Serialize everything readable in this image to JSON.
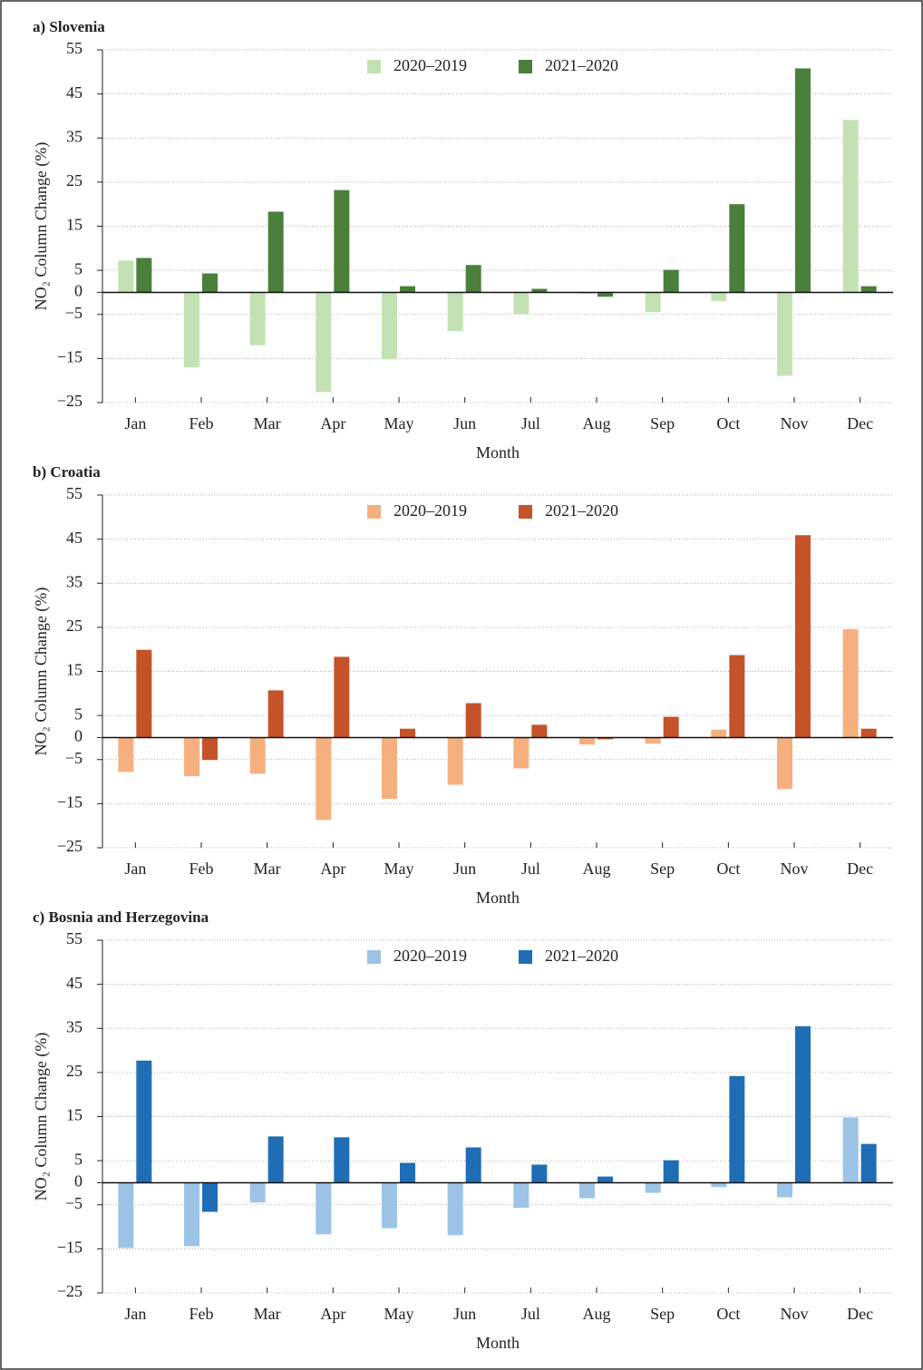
{
  "chart_data": [
    {
      "type": "bar",
      "title": "a) Slovenia",
      "xlabel": "Month",
      "ylabel": "NO₂ Column Change (%)",
      "categories": [
        "Jan",
        "Feb",
        "Mar",
        "Apr",
        "May",
        "Jun",
        "Jul",
        "Aug",
        "Sep",
        "Oct",
        "Nov",
        "Dec"
      ],
      "series": [
        {
          "name": "2020–2019",
          "color": "#c3e2b4",
          "values": [
            7.2,
            -17,
            -12,
            -22.6,
            -15.2,
            -8.8,
            -4.9,
            -0.3,
            -4.5,
            -2,
            -18.9,
            39.1
          ]
        },
        {
          "name": "2021–2020",
          "color": "#4a7f3c",
          "values": [
            7.8,
            4.3,
            18.3,
            23.2,
            1.4,
            6.2,
            0.8,
            -1,
            5.1,
            20,
            50.8,
            1.4
          ]
        }
      ],
      "ylim": [
        -25,
        55
      ],
      "yticks": [
        55,
        45,
        35,
        25,
        15,
        5,
        0,
        {
          "value": -5,
          "label": "−5"
        },
        {
          "value": -15,
          "label": "−15"
        },
        {
          "value": -25,
          "label": "−25"
        }
      ],
      "grid": true
    },
    {
      "type": "bar",
      "title": "b) Croatia",
      "xlabel": "Month",
      "ylabel": "NO₂ Column Change (%)",
      "categories": [
        "Jan",
        "Feb",
        "Mar",
        "Apr",
        "May",
        "Jun",
        "Jul",
        "Aug",
        "Sep",
        "Oct",
        "Nov",
        "Dec"
      ],
      "series": [
        {
          "name": "2020–2019",
          "color": "#f6b07f",
          "values": [
            -7.8,
            -8.8,
            -8.2,
            -18.7,
            -13.9,
            -10.7,
            -7,
            -1.6,
            -1.4,
            1.8,
            -11.7,
            24.6
          ]
        },
        {
          "name": "2021–2020",
          "color": "#c4532a",
          "values": [
            19.9,
            -5.1,
            10.7,
            18.3,
            2,
            7.8,
            2.9,
            -0.4,
            4.7,
            18.7,
            45.9,
            2
          ]
        }
      ],
      "ylim": [
        -25,
        55
      ],
      "yticks": [
        55,
        45,
        35,
        25,
        15,
        5,
        0,
        {
          "value": -5,
          "label": "−5"
        },
        {
          "value": -15,
          "label": "−15"
        },
        {
          "value": -25,
          "label": "−25"
        }
      ],
      "grid": true
    },
    {
      "type": "bar",
      "title": "c) Bosnia and Herzegovina",
      "xlabel": "Month",
      "ylabel": "NO₂ Column Change (%)",
      "categories": [
        "Jan",
        "Feb",
        "Mar",
        "Apr",
        "May",
        "Jun",
        "Jul",
        "Aug",
        "Sep",
        "Oct",
        "Nov",
        "Dec"
      ],
      "series": [
        {
          "name": "2020–2019",
          "color": "#9dc3e6",
          "values": [
            -14.8,
            -14.4,
            -4.5,
            -11.7,
            -10.3,
            -11.9,
            -5.7,
            -3.5,
            -2.3,
            -1,
            -3.3,
            14.8
          ]
        },
        {
          "name": "2021–2020",
          "color": "#1f6eb5",
          "values": [
            27.7,
            -6.6,
            10.5,
            10.3,
            4.5,
            8,
            4.1,
            1.4,
            5.1,
            24.2,
            35.5,
            8.8
          ]
        }
      ],
      "ylim": [
        -25,
        55
      ],
      "yticks": [
        55,
        45,
        35,
        25,
        15,
        5,
        0,
        {
          "value": -5,
          "label": "−5"
        },
        {
          "value": -15,
          "label": "−15"
        },
        {
          "value": -25,
          "label": "−25"
        }
      ],
      "grid": true
    }
  ]
}
